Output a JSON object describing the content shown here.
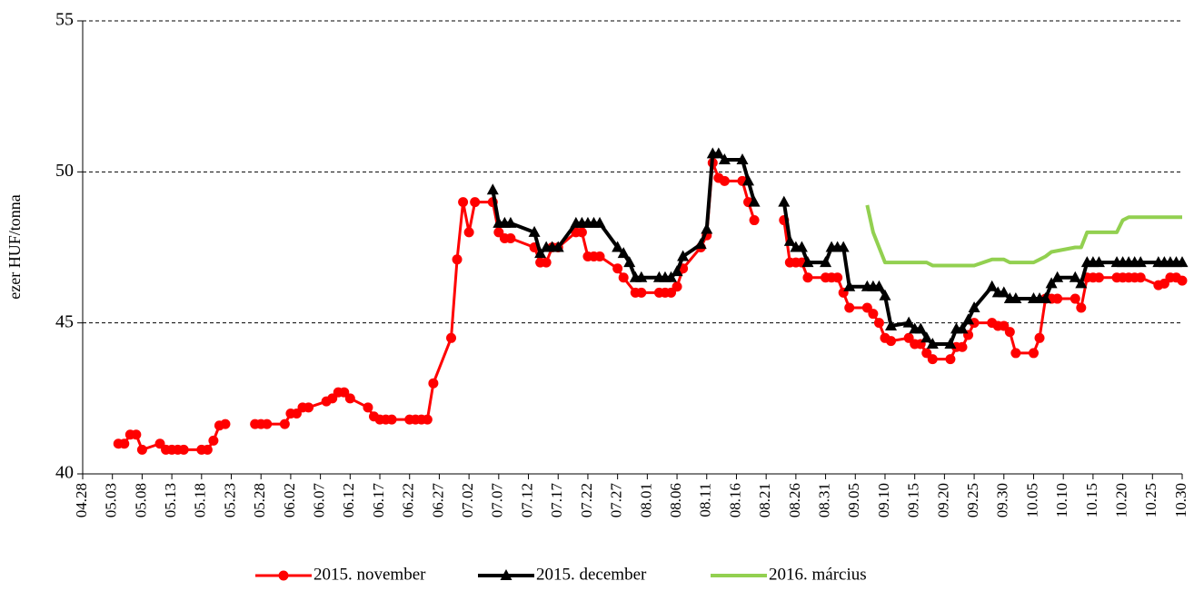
{
  "chart_data": {
    "type": "line",
    "y_label": "ezer HUF/tonna",
    "xlim": [
      "04.28",
      "10.30"
    ],
    "xticks": [
      "04.28",
      "05.03",
      "05.08",
      "05.13",
      "05.18",
      "05.23",
      "05.28",
      "06.02",
      "06.07",
      "06.12",
      "06.17",
      "06.22",
      "06.27",
      "07.02",
      "07.07",
      "07.12",
      "07.17",
      "07.22",
      "07.27",
      "08.01",
      "08.06",
      "08.11",
      "08.16",
      "08.21",
      "08.26",
      "08.31",
      "09.05",
      "09.10",
      "09.15",
      "09.20",
      "09.25",
      "09.30",
      "10.05",
      "10.10",
      "10.15",
      "10.20",
      "10.25",
      "10.30"
    ],
    "ylim": [
      40,
      55
    ],
    "yticks": [
      40,
      45,
      50,
      55
    ],
    "grid": true,
    "legend": "bottom",
    "series": [
      {
        "name": "2015. november",
        "color": "#ff0000",
        "marker": "circle",
        "x": [
          "05.04",
          "05.05",
          "05.06",
          "05.07",
          "05.08",
          "05.11",
          "05.12",
          "05.13",
          "05.14",
          "05.15",
          "05.18",
          "05.19",
          "05.20",
          "05.21",
          "05.22",
          "05.25",
          "05.27",
          "05.28",
          "05.29",
          "06.01",
          "06.02",
          "06.03",
          "06.04",
          "06.05",
          "06.08",
          "06.09",
          "06.10",
          "06.11",
          "06.12",
          "06.15",
          "06.16",
          "06.17",
          "06.18",
          "06.19",
          "06.22",
          "06.23",
          "06.24",
          "06.25",
          "06.26",
          "06.29",
          "06.30",
          "07.01",
          "07.02",
          "07.03",
          "07.06",
          "07.07",
          "07.08",
          "07.09",
          "07.13",
          "07.14",
          "07.15",
          "07.16",
          "07.17",
          "07.20",
          "07.21",
          "07.22",
          "07.23",
          "07.24",
          "07.27",
          "07.28",
          "07.30",
          "07.31",
          "08.03",
          "08.04",
          "08.05",
          "08.06",
          "08.07",
          "08.10",
          "08.11",
          "08.12",
          "08.13",
          "08.14",
          "08.17",
          "08.18",
          "08.19",
          "08.21",
          "08.24",
          "08.25",
          "08.26",
          "08.27",
          "08.28",
          "08.31",
          "09.01",
          "09.02",
          "09.03",
          "09.04",
          "09.07",
          "09.08",
          "09.09",
          "09.10",
          "09.11",
          "09.14",
          "09.15",
          "09.16",
          "09.17",
          "09.18",
          "09.21",
          "09.22",
          "09.23",
          "09.24",
          "09.25",
          "09.28",
          "09.29",
          "09.30",
          "10.01",
          "10.02",
          "10.05",
          "10.06",
          "10.07",
          "10.08",
          "10.09",
          "10.12",
          "10.13",
          "10.14",
          "10.15",
          "10.16",
          "10.19",
          "10.20",
          "10.21",
          "10.22",
          "10.23",
          "10.26",
          "10.27",
          "10.28",
          "10.29",
          "10.30"
        ],
        "values": [
          41.0,
          41.0,
          41.3,
          41.3,
          40.8,
          41.0,
          40.8,
          40.8,
          40.8,
          40.8,
          40.8,
          40.8,
          41.1,
          41.6,
          41.65,
          null,
          41.65,
          41.65,
          41.65,
          41.65,
          42.0,
          42.0,
          42.2,
          42.2,
          42.4,
          42.5,
          42.7,
          42.7,
          42.5,
          42.2,
          41.9,
          41.8,
          41.8,
          41.8,
          41.8,
          41.8,
          41.8,
          41.8,
          43.0,
          44.5,
          47.1,
          49.0,
          48.0,
          49.0,
          49.0,
          48.0,
          47.8,
          47.8,
          47.5,
          47.0,
          47.0,
          47.5,
          47.5,
          48.0,
          48.0,
          47.2,
          47.2,
          47.2,
          46.8,
          46.5,
          46.0,
          46.0,
          46.0,
          46.0,
          46.0,
          46.2,
          46.8,
          47.5,
          47.9,
          50.3,
          49.8,
          49.7,
          49.7,
          49.0,
          48.4,
          null,
          48.4,
          47.0,
          47.0,
          47.0,
          46.5,
          46.5,
          46.5,
          46.5,
          46.0,
          45.5,
          45.5,
          45.3,
          45.0,
          44.5,
          44.4,
          44.5,
          44.3,
          44.3,
          44.0,
          43.8,
          43.8,
          44.2,
          44.2,
          44.6,
          45.0,
          45.0,
          44.9,
          44.9,
          44.7,
          44.0,
          44.0,
          44.5,
          45.8,
          45.8,
          45.8,
          45.8,
          45.5,
          46.5,
          46.5,
          46.5,
          46.5,
          46.5,
          46.5,
          46.5,
          46.5,
          46.25,
          46.3,
          46.5,
          46.5,
          46.4
        ]
      },
      {
        "name": "2015. december",
        "color": "#000000",
        "marker": "triangle",
        "x": [
          "07.06",
          "07.07",
          "07.08",
          "07.09",
          "07.13",
          "07.14",
          "07.15",
          "07.16",
          "07.17",
          "07.20",
          "07.21",
          "07.22",
          "07.23",
          "07.24",
          "07.27",
          "07.28",
          "07.29",
          "07.30",
          "07.31",
          "08.03",
          "08.04",
          "08.05",
          "08.06",
          "08.07",
          "08.10",
          "08.11",
          "08.12",
          "08.13",
          "08.14",
          "08.17",
          "08.18",
          "08.19",
          "08.21",
          "08.24",
          "08.25",
          "08.26",
          "08.27",
          "08.28",
          "08.31",
          "09.01",
          "09.02",
          "09.03",
          "09.04",
          "09.07",
          "09.08",
          "09.09",
          "09.10",
          "09.11",
          "09.14",
          "09.15",
          "09.16",
          "09.17",
          "09.18",
          "09.21",
          "09.22",
          "09.23",
          "09.24",
          "09.25",
          "09.28",
          "09.29",
          "09.30",
          "10.01",
          "10.02",
          "10.05",
          "10.06",
          "10.07",
          "10.08",
          "10.09",
          "10.12",
          "10.13",
          "10.14",
          "10.15",
          "10.16",
          "10.19",
          "10.20",
          "10.21",
          "10.22",
          "10.23",
          "10.26",
          "10.27",
          "10.28",
          "10.29",
          "10.30"
        ],
        "values": [
          49.4,
          48.3,
          48.3,
          48.3,
          48.0,
          47.3,
          47.5,
          47.5,
          47.5,
          48.3,
          48.3,
          48.3,
          48.3,
          48.3,
          47.5,
          47.3,
          47.0,
          46.5,
          46.5,
          46.5,
          46.5,
          46.5,
          46.7,
          47.2,
          47.6,
          48.1,
          50.6,
          50.6,
          50.4,
          50.4,
          49.7,
          49.0,
          null,
          49.0,
          47.7,
          47.5,
          47.5,
          47.0,
          47.0,
          47.5,
          47.5,
          47.5,
          46.2,
          46.2,
          46.2,
          46.2,
          45.9,
          44.9,
          45.0,
          44.8,
          44.8,
          44.5,
          44.3,
          44.3,
          44.8,
          44.8,
          45.1,
          45.5,
          46.2,
          46.0,
          46.0,
          45.8,
          45.8,
          45.8,
          45.8,
          45.8,
          46.3,
          46.5,
          46.5,
          46.3,
          47.0,
          47.0,
          47.0,
          47.0,
          47.0,
          47.0,
          47.0,
          47.0,
          47.0,
          47.0,
          47.0,
          47.0,
          47.0
        ]
      },
      {
        "name": "2016. március",
        "color": "#92d050",
        "marker": "none",
        "x": [
          "09.07",
          "09.08",
          "09.10",
          "09.11",
          "09.14",
          "09.17",
          "09.18",
          "09.25",
          "09.28",
          "09.30",
          "10.01",
          "10.05",
          "10.07",
          "10.08",
          "10.12",
          "10.13",
          "10.14",
          "10.19",
          "10.20",
          "10.21",
          "10.30"
        ],
        "values": [
          48.9,
          48.0,
          47.0,
          47.0,
          47.0,
          47.0,
          46.9,
          46.9,
          47.1,
          47.1,
          47.0,
          47.0,
          47.2,
          47.35,
          47.5,
          47.5,
          48.0,
          48.0,
          48.4,
          48.5,
          48.5
        ]
      }
    ]
  }
}
